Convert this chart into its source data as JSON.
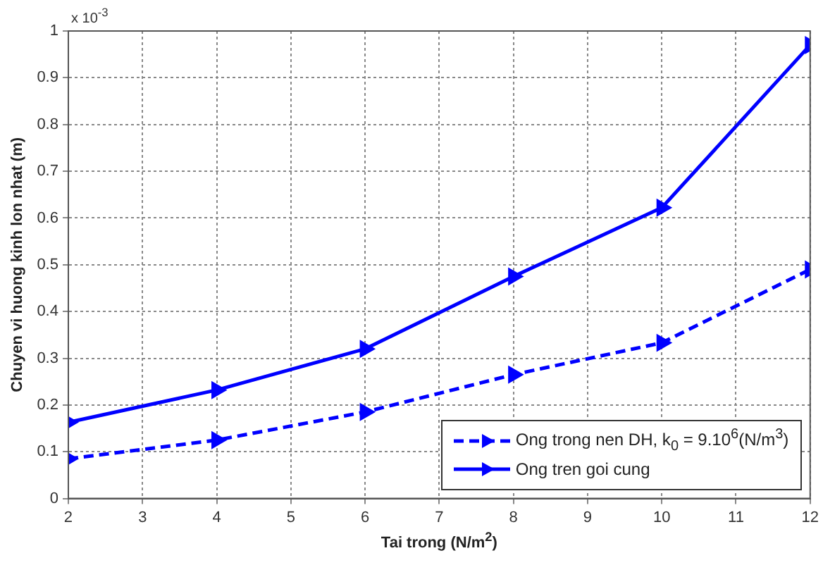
{
  "chart_data": {
    "type": "line",
    "xlabel": "Tai trong (N/m$^{2}$)",
    "ylabel": "Chuyen vi huong kinh lon nhat (m)",
    "annotations": [
      "x 10$^{-3}$"
    ],
    "x": [
      2,
      4,
      6,
      8,
      10,
      12
    ],
    "xlim": [
      2,
      12
    ],
    "xticks": [
      2,
      3,
      4,
      5,
      6,
      7,
      8,
      9,
      10,
      11,
      12
    ],
    "ylim": [
      0,
      1
    ],
    "yticks": [
      0,
      0.1,
      0.2,
      0.3,
      0.4,
      0.5,
      0.6,
      0.7,
      0.8,
      0.9,
      1
    ],
    "grid": true,
    "legend": "bottom right",
    "marker": "triangle",
    "series": [
      {
        "name": "Ong trong nen DH, k$_{0}$ = 9.10$^{6}$(N/m$^{3}$)",
        "color": "#0000ff",
        "line_style": "dashed",
        "values": [
          0.085,
          0.125,
          0.185,
          0.265,
          0.333,
          0.49
        ]
      },
      {
        "name": "Ong tren goi cung",
        "color": "#0000ff",
        "line_style": "solid",
        "values": [
          0.163,
          0.232,
          0.32,
          0.475,
          0.622,
          0.97
        ]
      }
    ]
  }
}
